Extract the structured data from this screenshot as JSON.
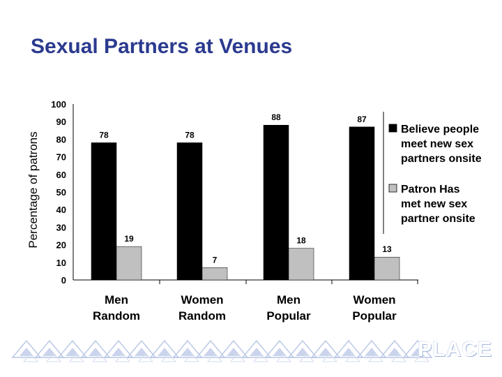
{
  "slide": {
    "title": "Sexual Partners at Venues",
    "brand": "PLACE"
  },
  "colors": {
    "title": "#2b3a8f",
    "series_believe": "#000000",
    "series_met": "#c0c0c0",
    "footer": "#b8c6e6"
  },
  "chart_data": {
    "type": "bar",
    "ylabel": "Percentage of patrons",
    "ylim": [
      0,
      100
    ],
    "yticks": [
      0,
      10,
      20,
      30,
      40,
      50,
      60,
      70,
      80,
      90,
      100
    ],
    "categories": [
      [
        "Men",
        "Random"
      ],
      [
        "Women",
        "Random"
      ],
      [
        "Men",
        "Popular"
      ],
      [
        "Women",
        "Popular"
      ]
    ],
    "series": [
      {
        "name": [
          "Believe people",
          "meet new sex",
          "partners onsite"
        ],
        "values": [
          78,
          78,
          88,
          87
        ],
        "color": "#000000"
      },
      {
        "name": [
          "Patron Has",
          "met new sex",
          "partner onsite"
        ],
        "values": [
          19,
          7,
          18,
          13
        ],
        "color": "#c0c0c0"
      }
    ],
    "legend": "right",
    "grid": false
  }
}
